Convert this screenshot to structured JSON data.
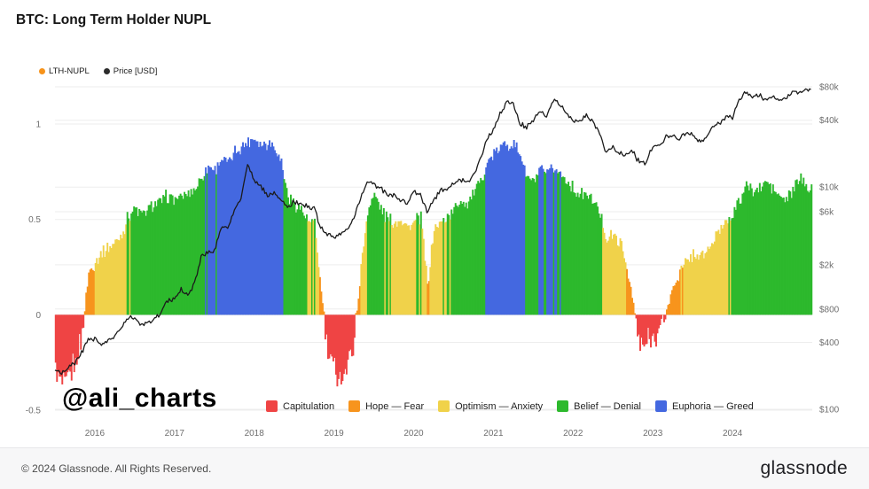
{
  "header": {
    "title": "BTC: Long Term Holder NUPL"
  },
  "legend_top": [
    {
      "label": "LTH-NUPL",
      "color": "#f7931a"
    },
    {
      "label": "Price [USD]",
      "color": "#2b2b2b"
    }
  ],
  "watermark": "@ali_charts",
  "footer": {
    "copyright": "© 2024 Glassnode. All Rights Reserved.",
    "brand": "glassnode"
  },
  "chart_data": {
    "type": "bar+line",
    "title": "BTC: Long Term Holder NUPL",
    "x_start_year": 2015.5,
    "x_step_years": 0.0833333,
    "x_tick_values": [
      2016,
      2017,
      2018,
      2019,
      2020,
      2021,
      2022,
      2023,
      2024
    ],
    "x_tick_labels": [
      "2016",
      "2017",
      "2018",
      "2019",
      "2020",
      "2021",
      "2022",
      "2023",
      "2024"
    ],
    "left_axis": {
      "title": "LTH-NUPL",
      "range": [
        -0.55,
        1.2
      ],
      "tick_values": [
        -0.5,
        0,
        0.5,
        1
      ],
      "tick_labels": [
        "-0.5",
        "0",
        "0.5",
        "1"
      ]
    },
    "right_axis": {
      "title": "Price [USD]",
      "scale": "log",
      "tick_values": [
        100,
        400,
        800,
        2000,
        6000,
        10000,
        40000,
        80000
      ],
      "tick_labels": [
        "$100",
        "$400",
        "$800",
        "$2k",
        "$6k",
        "$10k",
        "$40k",
        "$80k"
      ]
    },
    "bands": [
      {
        "label": "Capitulation",
        "color": "#ef4444",
        "range": [
          -2,
          0
        ]
      },
      {
        "label": "Hope — Fear",
        "color": "#f7941d",
        "range": [
          0,
          0.25
        ]
      },
      {
        "label": "Optimism — Anxiety",
        "color": "#f0d24a",
        "range": [
          0.25,
          0.5
        ]
      },
      {
        "label": "Belief — Denial",
        "color": "#2db92d",
        "range": [
          0.5,
          0.75
        ]
      },
      {
        "label": "Euphoria — Greed",
        "color": "#4468e0",
        "range": [
          0.75,
          2
        ]
      }
    ],
    "series": [
      {
        "name": "LTH-NUPL",
        "type": "bar",
        "cadence": "monthly",
        "values": [
          -0.3,
          -0.37,
          -0.33,
          -0.25,
          -0.1,
          0.22,
          0.28,
          0.33,
          0.35,
          0.38,
          0.42,
          0.52,
          0.56,
          0.53,
          0.55,
          0.58,
          0.6,
          0.62,
          0.61,
          0.62,
          0.64,
          0.66,
          0.72,
          0.78,
          0.76,
          0.82,
          0.8,
          0.85,
          0.88,
          0.91,
          0.93,
          0.89,
          0.91,
          0.88,
          0.8,
          0.62,
          0.58,
          0.55,
          0.49,
          0.47,
          0.12,
          -0.22,
          -0.28,
          -0.34,
          -0.26,
          -0.12,
          0.25,
          0.55,
          0.63,
          0.56,
          0.5,
          0.48,
          0.51,
          0.46,
          0.48,
          0.52,
          0.15,
          0.45,
          0.48,
          0.52,
          0.55,
          0.6,
          0.58,
          0.64,
          0.7,
          0.8,
          0.84,
          0.88,
          0.9,
          0.89,
          0.84,
          0.72,
          0.7,
          0.76,
          0.73,
          0.77,
          0.74,
          0.7,
          0.66,
          0.62,
          0.63,
          0.6,
          0.52,
          0.4,
          0.42,
          0.38,
          0.25,
          0.05,
          -0.18,
          -0.15,
          -0.12,
          -0.08,
          0.02,
          0.15,
          0.22,
          0.28,
          0.32,
          0.3,
          0.33,
          0.38,
          0.45,
          0.5,
          0.53,
          0.6,
          0.68,
          0.65,
          0.66,
          0.7,
          0.66,
          0.62,
          0.6,
          0.65,
          0.72,
          0.68
        ]
      },
      {
        "name": "Price [USD]",
        "type": "line",
        "cadence": "monthly",
        "values": [
          230,
          215,
          235,
          262,
          320,
          420,
          430,
          375,
          415,
          450,
          530,
          670,
          655,
          575,
          608,
          640,
          745,
          960,
          970,
          1180,
          1080,
          1350,
          2300,
          2550,
          2700,
          4400,
          4300,
          6100,
          7800,
          16500,
          11500,
          10000,
          8500,
          8900,
          7600,
          6500,
          7400,
          7000,
          6600,
          6500,
          4300,
          3700,
          3500,
          3800,
          4000,
          5300,
          8000,
          11500,
          10500,
          10200,
          8300,
          8600,
          7500,
          7200,
          9100,
          8800,
          6000,
          7600,
          9500,
          9400,
          10800,
          11600,
          10800,
          13000,
          17500,
          27000,
          33000,
          45500,
          58000,
          57500,
          37000,
          35000,
          40000,
          47000,
          43500,
          61000,
          57000,
          46500,
          38500,
          40000,
          45000,
          38500,
          30000,
          20000,
          23000,
          20000,
          19500,
          20500,
          16500,
          16800,
          23100,
          23500,
          28000,
          29200,
          27000,
          30500,
          29200,
          26000,
          27000,
          34500,
          37500,
          42500,
          42800,
          61500,
          70000,
          64000,
          68000,
          61500,
          64500,
          59000,
          63500,
          69500,
          72000,
          76000
        ]
      }
    ]
  }
}
